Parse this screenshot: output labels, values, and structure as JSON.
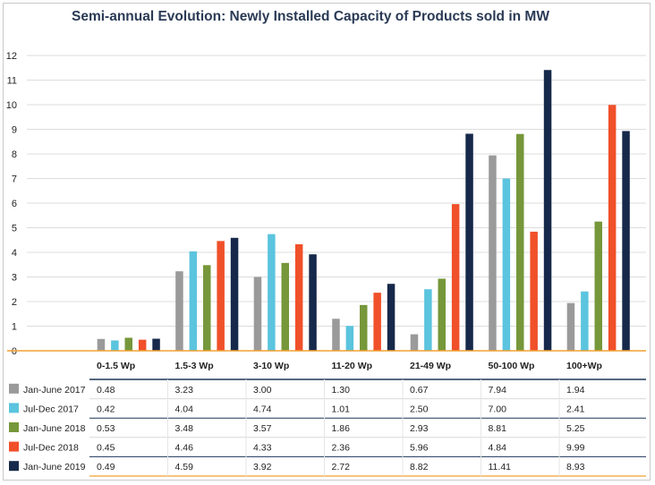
{
  "title": "Semi-annual Evolution: Newly Installed Capacity of Products sold in MW",
  "chart_data": {
    "type": "bar",
    "title": "Semi-annual Evolution: Newly Installed Capacity of Products sold in MW",
    "xlabel": "",
    "ylabel": "",
    "ylim": [
      0,
      12
    ],
    "yticks": [
      0,
      1,
      2,
      3,
      4,
      5,
      6,
      7,
      8,
      9,
      10,
      11,
      12
    ],
    "grid": true,
    "legend": "table-below",
    "categories": [
      "0-1.5 Wp",
      "1.5-3 Wp",
      "3-10 Wp",
      "11-20 Wp",
      "21-49 Wp",
      "50-100 Wp",
      "100+Wp"
    ],
    "series": [
      {
        "name": "Jan-June 2017",
        "color": "#9a9a9a",
        "values": [
          0.48,
          3.23,
          3.0,
          1.3,
          0.67,
          7.94,
          1.94
        ],
        "labels": [
          "0.48",
          "3.23",
          "3.00",
          "1.30",
          "0.67",
          "7.94",
          "1.94"
        ]
      },
      {
        "name": "Jul-Dec 2017",
        "color": "#5bc4de",
        "values": [
          0.42,
          4.04,
          4.74,
          1.01,
          2.5,
          7.0,
          2.41
        ],
        "labels": [
          "0.42",
          "4.04",
          "4.74",
          "1.01",
          "2.50",
          "7.00",
          "2.41"
        ]
      },
      {
        "name": "Jan-June 2018",
        "color": "#76973a",
        "values": [
          0.53,
          3.48,
          3.57,
          1.86,
          2.93,
          8.81,
          5.25
        ],
        "labels": [
          "0.53",
          "3.48",
          "3.57",
          "1.86",
          "2.93",
          "8.81",
          "5.25"
        ]
      },
      {
        "name": "Jul-Dec 2018",
        "color": "#f0502a",
        "values": [
          0.45,
          4.46,
          4.33,
          2.36,
          5.96,
          4.84,
          9.99
        ],
        "labels": [
          "0.45",
          "4.46",
          "4.33",
          "2.36",
          "5.96",
          "4.84",
          "9.99"
        ]
      },
      {
        "name": "Jan-June 2019",
        "color": "#17294a",
        "values": [
          0.49,
          4.59,
          3.92,
          2.72,
          8.82,
          11.41,
          8.93
        ],
        "labels": [
          "0.49",
          "4.59",
          "3.92",
          "2.72",
          "8.82",
          "11.41",
          "8.93"
        ]
      }
    ],
    "colors": {
      "axis": "#f0a030",
      "grid": "#dcdcdc",
      "table_line_dark": "#1d3557",
      "table_line_light": "#d9d9d9"
    }
  }
}
